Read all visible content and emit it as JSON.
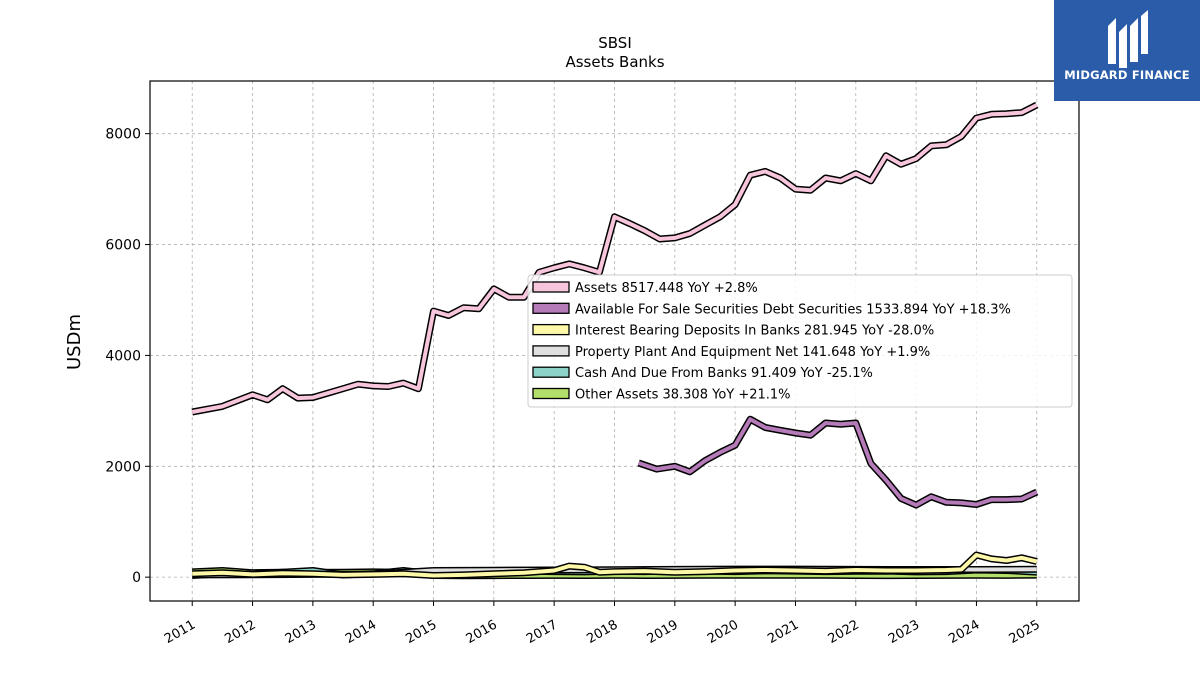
{
  "logo": {
    "text": "MIDGARD FINANCE",
    "icon": "midgard-m-logo-icon",
    "background": "#2a5caa"
  },
  "chart_data": {
    "type": "line",
    "title": "SBSI",
    "subtitle": "Assets Banks",
    "xlabel": "",
    "ylabel": "USDm",
    "xlim": [
      2010.3,
      2025.7
    ],
    "ylim": [
      -430,
      8950
    ],
    "yticks": [
      0,
      2000,
      4000,
      6000,
      8000
    ],
    "xticks": [
      2011,
      2012,
      2013,
      2014,
      2015,
      2016,
      2017,
      2018,
      2019,
      2020,
      2021,
      2022,
      2023,
      2024,
      2025
    ],
    "grid": true,
    "legend_position": "center-right",
    "series": [
      {
        "name": "Assets",
        "legend": "Assets  8517.448 YoY +2.8%",
        "color": "#f7c6dc",
        "x": [
          2011.0,
          2011.5,
          2012.0,
          2012.25,
          2012.5,
          2012.75,
          2013.0,
          2013.25,
          2013.5,
          2013.75,
          2014.0,
          2014.25,
          2014.5,
          2014.75,
          2015.0,
          2015.25,
          2015.5,
          2015.75,
          2016.0,
          2016.25,
          2016.5,
          2016.75,
          2017.0,
          2017.25,
          2017.5,
          2017.75,
          2018.0,
          2018.25,
          2018.5,
          2018.75,
          2019.0,
          2019.25,
          2019.5,
          2019.75,
          2020.0,
          2020.25,
          2020.5,
          2020.75,
          2021.0,
          2021.25,
          2021.5,
          2021.75,
          2022.0,
          2022.25,
          2022.5,
          2022.75,
          2023.0,
          2023.25,
          2023.5,
          2023.75,
          2024.0,
          2024.25,
          2024.5,
          2024.75,
          2025.0
        ],
        "y": [
          2980,
          3080,
          3290,
          3200,
          3400,
          3230,
          3240,
          3320,
          3400,
          3480,
          3450,
          3440,
          3500,
          3400,
          4800,
          4720,
          4860,
          4840,
          5200,
          5050,
          5050,
          5500,
          5580,
          5650,
          5580,
          5500,
          6500,
          6380,
          6250,
          6100,
          6120,
          6200,
          6350,
          6500,
          6720,
          7250,
          7320,
          7200,
          7000,
          6980,
          7200,
          7150,
          7280,
          7150,
          7600,
          7450,
          7550,
          7780,
          7800,
          7950,
          8280,
          8350,
          8360,
          8380,
          8517
        ]
      },
      {
        "name": "Available For Sale Securities Debt Securities",
        "legend": "Available For Sale Securities Debt Securities  1533.894 YoY +18.3%",
        "color": "#b57ab8",
        "x": [
          2018.4,
          2018.7,
          2019.0,
          2019.25,
          2019.5,
          2019.75,
          2020.0,
          2020.25,
          2020.5,
          2020.75,
          2021.0,
          2021.25,
          2021.5,
          2021.75,
          2022.0,
          2022.25,
          2022.5,
          2022.75,
          2023.0,
          2023.25,
          2023.5,
          2023.75,
          2024.0,
          2024.25,
          2024.5,
          2024.75,
          2025.0
        ],
        "y": [
          2060,
          1950,
          2000,
          1900,
          2100,
          2250,
          2380,
          2850,
          2700,
          2650,
          2600,
          2560,
          2780,
          2760,
          2780,
          2050,
          1750,
          1420,
          1300,
          1450,
          1350,
          1340,
          1310,
          1400,
          1400,
          1410,
          1534
        ]
      },
      {
        "name": "Interest Bearing Deposits In Banks",
        "legend": "Interest Bearing Deposits In Banks  281.945 YoY -28.0%",
        "color": "#fdf8a8",
        "x": [
          2011.0,
          2011.5,
          2012.0,
          2012.5,
          2013.0,
          2013.5,
          2014.0,
          2014.5,
          2015.0,
          2015.5,
          2016.0,
          2016.5,
          2017.0,
          2017.25,
          2017.5,
          2017.75,
          2018.0,
          2018.5,
          2019.0,
          2019.5,
          2020.0,
          2020.5,
          2021.0,
          2021.5,
          2022.0,
          2022.5,
          2023.0,
          2023.5,
          2023.75,
          2024.0,
          2024.25,
          2024.5,
          2024.75,
          2025.0
        ],
        "y": [
          60,
          80,
          50,
          70,
          60,
          40,
          50,
          60,
          30,
          40,
          60,
          80,
          120,
          200,
          180,
          90,
          100,
          110,
          90,
          100,
          120,
          130,
          120,
          110,
          130,
          120,
          120,
          130,
          140,
          400,
          330,
          300,
          350,
          282
        ]
      },
      {
        "name": "Property Plant And Equipment Net",
        "legend": "Property Plant And Equipment Net  141.648 YoY +1.9%",
        "color": "#e0e0e0",
        "x": [
          2011.0,
          2012.0,
          2013.0,
          2014.0,
          2015.0,
          2016.0,
          2017.0,
          2018.0,
          2019.0,
          2020.0,
          2021.0,
          2022.0,
          2023.0,
          2024.0,
          2025.0
        ],
        "y": [
          40,
          45,
          50,
          55,
          120,
          125,
          130,
          135,
          140,
          145,
          145,
          140,
          138,
          139,
          142
        ]
      },
      {
        "name": "Cash And Due From Banks",
        "legend": "Cash And Due From Banks  91.409 YoY -25.1%",
        "color": "#8dd3c7",
        "x": [
          2011.0,
          2011.5,
          2012.0,
          2012.5,
          2013.0,
          2013.5,
          2014.0,
          2014.5,
          2015.0,
          2015.5,
          2016.0,
          2016.5,
          2017.0,
          2017.5,
          2018.0,
          2018.5,
          2019.0,
          2019.5,
          2020.0,
          2020.5,
          2021.0,
          2021.5,
          2022.0,
          2022.5,
          2023.0,
          2023.5,
          2024.0,
          2024.5,
          2025.0
        ],
        "y": [
          30,
          60,
          50,
          90,
          120,
          40,
          60,
          120,
          60,
          80,
          90,
          110,
          100,
          95,
          110,
          100,
          120,
          110,
          100,
          115,
          110,
          100,
          105,
          110,
          95,
          100,
          130,
          120,
          91
        ]
      },
      {
        "name": "Other Assets",
        "legend": "Other Assets  38.308 YoY +21.1%",
        "color": "#b3de69",
        "x": [
          2011.0,
          2011.5,
          2012.0,
          2012.5,
          2013.0,
          2013.5,
          2014.0,
          2014.5,
          2015.0,
          2015.5,
          2016.0,
          2016.5,
          2017.0,
          2017.5,
          2018.0,
          2018.5,
          2019.0,
          2019.5,
          2020.0,
          2020.5,
          2021.0,
          2021.5,
          2022.0,
          2022.5,
          2023.0,
          2023.5,
          2024.0,
          2024.5,
          2025.0
        ],
        "y": [
          95,
          120,
          80,
          90,
          85,
          90,
          95,
          90,
          30,
          25,
          28,
          30,
          32,
          30,
          35,
          30,
          32,
          33,
          35,
          36,
          34,
          35,
          30,
          28,
          30,
          32,
          33,
          32,
          38
        ]
      }
    ]
  }
}
